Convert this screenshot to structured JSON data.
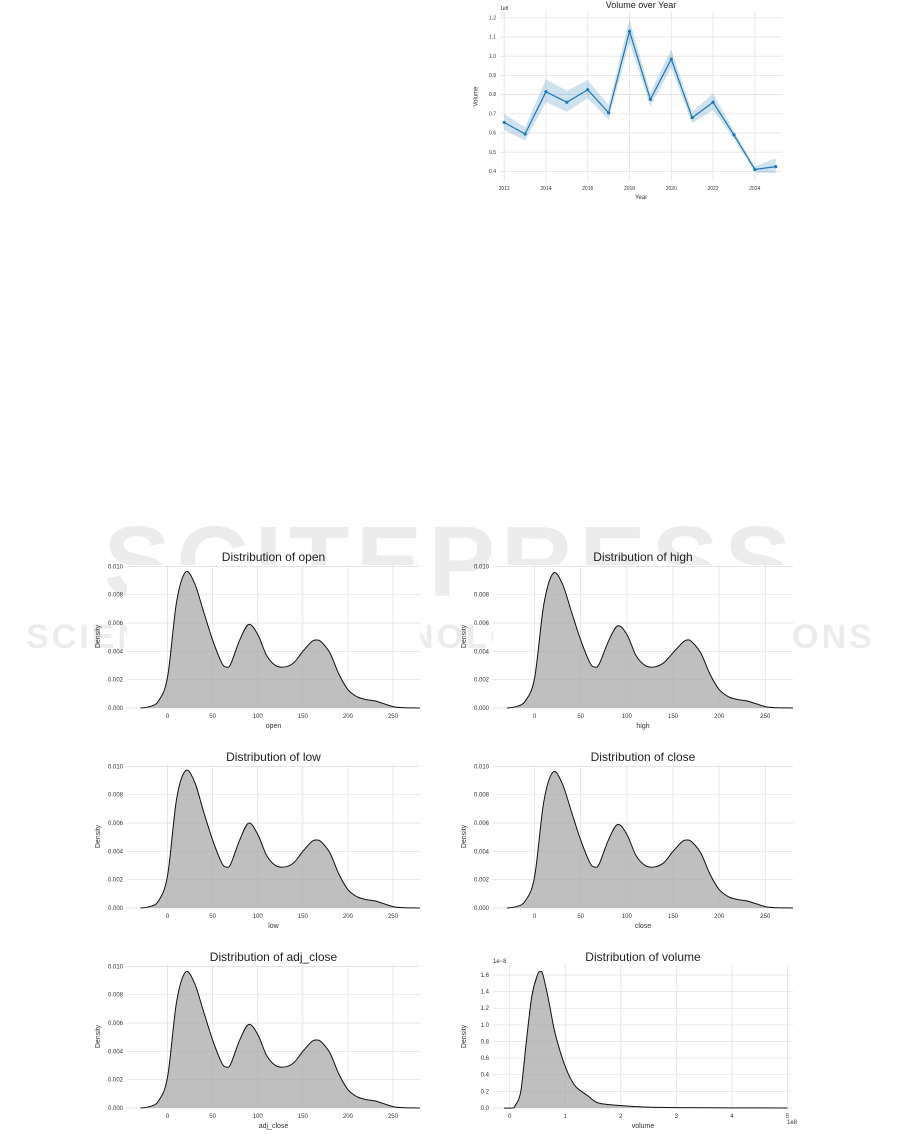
{
  "watermark": {
    "logo_text": "SCITEPRESS",
    "logo_subtext": "SCIENCE AND TECHNOLOGY PUBLICATIONS"
  },
  "chart_data": [
    {
      "type": "line",
      "title": "Volume over Year",
      "xlabel": "Year",
      "ylabel": "Volume",
      "y_offset_label": "1e8",
      "x": [
        2012,
        2013,
        2014,
        2015,
        2016,
        2017,
        2018,
        2019,
        2020,
        2021,
        2022,
        2023,
        2024,
        2025
      ],
      "values": [
        0.655,
        0.595,
        0.815,
        0.76,
        0.825,
        0.705,
        1.13,
        0.775,
        0.985,
        0.68,
        0.76,
        0.59,
        0.41,
        0.425
      ],
      "ci_lower": [
        0.615,
        0.56,
        0.76,
        0.71,
        0.78,
        0.67,
        1.07,
        0.74,
        0.94,
        0.65,
        0.72,
        0.57,
        0.395,
        0.39
      ],
      "ci_upper": [
        0.7,
        0.63,
        0.88,
        0.82,
        0.875,
        0.745,
        1.19,
        0.81,
        1.035,
        0.71,
        0.805,
        0.61,
        0.425,
        0.47
      ],
      "xticks": [
        "2012",
        "2014",
        "2016",
        "2018",
        "2020",
        "2022",
        "2024"
      ],
      "yticks": [
        "0.4",
        "0.5",
        "0.6",
        "0.7",
        "0.8",
        "0.9",
        "1.0",
        "1.1",
        "1.2"
      ],
      "xlim": [
        2011.8,
        2025.3
      ],
      "ylim": [
        0.35,
        1.23
      ],
      "grid": true,
      "color": "#1f77b4"
    },
    {
      "type": "area",
      "title": "Distribution of open",
      "xlabel": "open",
      "ylabel": "Density",
      "x": [
        -30,
        -20,
        -10,
        0,
        10,
        20,
        30,
        40,
        50,
        60,
        65,
        70,
        80,
        90,
        100,
        110,
        120,
        130,
        140,
        150,
        160,
        165,
        170,
        180,
        190,
        200,
        210,
        220,
        230,
        240,
        250,
        260,
        280
      ],
      "values": [
        0,
        0.0001,
        0.0005,
        0.0022,
        0.0075,
        0.0096,
        0.0088,
        0.0068,
        0.0048,
        0.0032,
        0.0029,
        0.0031,
        0.0048,
        0.0059,
        0.0052,
        0.0037,
        0.003,
        0.0029,
        0.0032,
        0.004,
        0.0047,
        0.0048,
        0.0047,
        0.0039,
        0.0024,
        0.0013,
        0.0008,
        0.0006,
        0.0005,
        0.0003,
        0.0001,
        3e-05,
        0
      ],
      "xticks": [
        "0",
        "50",
        "100",
        "150",
        "200",
        "250"
      ],
      "yticks": [
        "0.000",
        "0.002",
        "0.004",
        "0.006",
        "0.008",
        "0.010"
      ],
      "xlim": [
        -45,
        280
      ],
      "ylim": [
        0,
        0.0101
      ],
      "grid": true,
      "color": "#a9a9a9"
    },
    {
      "type": "area",
      "title": "Distribution of high",
      "xlabel": "high",
      "ylabel": "Density",
      "x": [
        -30,
        -20,
        -10,
        0,
        10,
        20,
        30,
        40,
        50,
        60,
        65,
        70,
        80,
        90,
        100,
        110,
        120,
        130,
        140,
        150,
        160,
        165,
        170,
        180,
        190,
        200,
        210,
        220,
        230,
        240,
        250,
        260,
        280
      ],
      "values": [
        0,
        0.0001,
        0.0005,
        0.0021,
        0.0073,
        0.0095,
        0.0088,
        0.0068,
        0.0048,
        0.0032,
        0.0029,
        0.0031,
        0.0047,
        0.0058,
        0.0052,
        0.0037,
        0.003,
        0.0029,
        0.0032,
        0.0039,
        0.0046,
        0.0048,
        0.0047,
        0.0039,
        0.0024,
        0.0013,
        0.0008,
        0.0006,
        0.0005,
        0.0003,
        0.0001,
        3e-05,
        0
      ],
      "xticks": [
        "0",
        "50",
        "100",
        "150",
        "200",
        "250"
      ],
      "yticks": [
        "0.000",
        "0.002",
        "0.004",
        "0.006",
        "0.008",
        "0.010"
      ],
      "xlim": [
        -45,
        280
      ],
      "ylim": [
        0,
        0.0101
      ],
      "grid": true,
      "color": "#a9a9a9"
    },
    {
      "type": "area",
      "title": "Distribution of low",
      "xlabel": "low",
      "ylabel": "Density",
      "x": [
        -30,
        -20,
        -10,
        0,
        10,
        20,
        30,
        40,
        50,
        60,
        65,
        70,
        80,
        90,
        100,
        110,
        120,
        130,
        140,
        150,
        160,
        165,
        170,
        180,
        190,
        200,
        210,
        220,
        230,
        240,
        250,
        260,
        280
      ],
      "values": [
        0,
        0.0001,
        0.0005,
        0.0023,
        0.0077,
        0.0097,
        0.0089,
        0.0068,
        0.0048,
        0.0032,
        0.0029,
        0.0031,
        0.0048,
        0.006,
        0.0052,
        0.0037,
        0.003,
        0.0029,
        0.0032,
        0.004,
        0.0047,
        0.0048,
        0.0047,
        0.0039,
        0.0024,
        0.0013,
        0.0008,
        0.0006,
        0.0005,
        0.0003,
        0.0001,
        3e-05,
        0
      ],
      "xticks": [
        "0",
        "50",
        "100",
        "150",
        "200",
        "250"
      ],
      "yticks": [
        "0.000",
        "0.002",
        "0.004",
        "0.006",
        "0.008",
        "0.010"
      ],
      "xlim": [
        -45,
        280
      ],
      "ylim": [
        0,
        0.0101
      ],
      "grid": true,
      "color": "#a9a9a9"
    },
    {
      "type": "area",
      "title": "Distribution of close",
      "xlabel": "close",
      "ylabel": "Density",
      "x": [
        -30,
        -20,
        -10,
        0,
        10,
        20,
        30,
        40,
        50,
        60,
        65,
        70,
        80,
        90,
        100,
        110,
        120,
        130,
        140,
        150,
        160,
        165,
        170,
        180,
        190,
        200,
        210,
        220,
        230,
        240,
        250,
        260,
        280
      ],
      "values": [
        0,
        0.0001,
        0.0005,
        0.0022,
        0.0075,
        0.0096,
        0.0088,
        0.0068,
        0.0048,
        0.0032,
        0.0029,
        0.0031,
        0.0048,
        0.0059,
        0.0052,
        0.0037,
        0.003,
        0.0029,
        0.0032,
        0.004,
        0.0047,
        0.0048,
        0.0047,
        0.0039,
        0.0024,
        0.0013,
        0.0008,
        0.0006,
        0.0005,
        0.0003,
        0.0001,
        3e-05,
        0
      ],
      "xticks": [
        "0",
        "50",
        "100",
        "150",
        "200",
        "250"
      ],
      "yticks": [
        "0.000",
        "0.002",
        "0.004",
        "0.006",
        "0.008",
        "0.010"
      ],
      "xlim": [
        -45,
        280
      ],
      "ylim": [
        0,
        0.0101
      ],
      "grid": true,
      "color": "#a9a9a9"
    },
    {
      "type": "area",
      "title": "Distribution of adj_close",
      "xlabel": "adj_close",
      "ylabel": "Density",
      "x": [
        -30,
        -20,
        -10,
        0,
        10,
        20,
        30,
        40,
        50,
        60,
        65,
        70,
        80,
        90,
        100,
        110,
        120,
        130,
        140,
        150,
        160,
        165,
        170,
        180,
        190,
        200,
        210,
        220,
        230,
        240,
        250,
        260,
        280
      ],
      "values": [
        0,
        0.0001,
        0.0005,
        0.0022,
        0.0075,
        0.0096,
        0.0088,
        0.0068,
        0.0048,
        0.0032,
        0.0029,
        0.0031,
        0.0048,
        0.0059,
        0.0052,
        0.0037,
        0.003,
        0.0029,
        0.0032,
        0.004,
        0.0047,
        0.0048,
        0.0047,
        0.0039,
        0.0024,
        0.0013,
        0.0008,
        0.0006,
        0.0005,
        0.0003,
        0.0001,
        3e-05,
        0
      ],
      "xticks": [
        "0",
        "50",
        "100",
        "150",
        "200",
        "250"
      ],
      "yticks": [
        "0.000",
        "0.002",
        "0.004",
        "0.006",
        "0.008",
        "0.010"
      ],
      "xlim": [
        -45,
        280
      ],
      "ylim": [
        0,
        0.0101
      ],
      "grid": true,
      "color": "#a9a9a9"
    },
    {
      "type": "area",
      "title": "Distribution of volume",
      "xlabel": "volume",
      "ylabel": "Density",
      "x_offset_label": "1e8",
      "y_offset_label": "1e−8",
      "x": [
        -0.1,
        0.05,
        0.1,
        0.2,
        0.3,
        0.4,
        0.5,
        0.55,
        0.6,
        0.7,
        0.8,
        0.9,
        1.0,
        1.1,
        1.2,
        1.4,
        1.6,
        2.0,
        2.5,
        3.0,
        4.0,
        5.0
      ],
      "values": [
        0,
        0,
        0.03,
        0.2,
        0.8,
        1.35,
        1.6,
        1.64,
        1.6,
        1.3,
        0.95,
        0.7,
        0.5,
        0.35,
        0.25,
        0.15,
        0.06,
        0.03,
        0.01,
        0.005,
        0.002,
        0
      ],
      "xticks": [
        "0",
        "1",
        "2",
        "3",
        "4",
        "5"
      ],
      "yticks": [
        "0.0",
        "0.2",
        "0.4",
        "0.6",
        "0.8",
        "1.0",
        "1.2",
        "1.4",
        "1.6"
      ],
      "xlim": [
        -0.3,
        5.1
      ],
      "ylim": [
        0,
        1.72
      ],
      "grid": true,
      "color": "#a9a9a9"
    }
  ]
}
